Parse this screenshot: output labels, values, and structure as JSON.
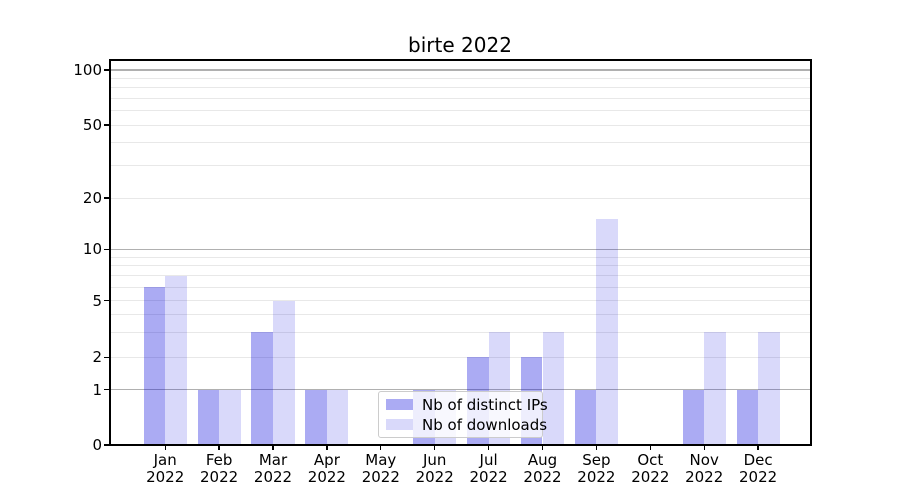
{
  "title": "birte 2022",
  "chart_data": {
    "type": "bar",
    "title": "birte 2022",
    "categories": [
      "Jan 2022",
      "Feb 2022",
      "Mar 2022",
      "Apr 2022",
      "May 2022",
      "Jun 2022",
      "Jul 2022",
      "Aug 2022",
      "Sep 2022",
      "Oct 2022",
      "Nov 2022",
      "Dec 2022"
    ],
    "series": [
      {
        "name": "Nb of distinct IPs",
        "color": "rgba(0,0,220,0.33)",
        "values": [
          6,
          1,
          3,
          1,
          0,
          1,
          2,
          2,
          1,
          0,
          1,
          1
        ]
      },
      {
        "name": "Nb of downloads",
        "color": "rgba(0,0,220,0.15)",
        "values": [
          7,
          1,
          5,
          1,
          0,
          1,
          3,
          3,
          15,
          0,
          3,
          3
        ]
      }
    ],
    "xlabel": "",
    "ylabel": "",
    "y_scale": "symlog",
    "y_ticks": [
      0,
      1,
      2,
      5,
      10,
      20,
      50,
      100
    ],
    "y_minor_gridlines": [
      2,
      3,
      4,
      5,
      6,
      7,
      8,
      9,
      20,
      30,
      40,
      50,
      60,
      70,
      80,
      90
    ],
    "y_major_gridlines": [
      1,
      10,
      100
    ],
    "ylim": [
      0,
      113
    ],
    "grid": true,
    "legend_position": "lower center",
    "colors": {
      "spine": "#000000",
      "major_grid": "#b0b0b0",
      "minor_grid": "#e8e8e8",
      "legend_border": "#cccccc",
      "legend_background": "rgba(255,255,255,0.8)"
    }
  }
}
